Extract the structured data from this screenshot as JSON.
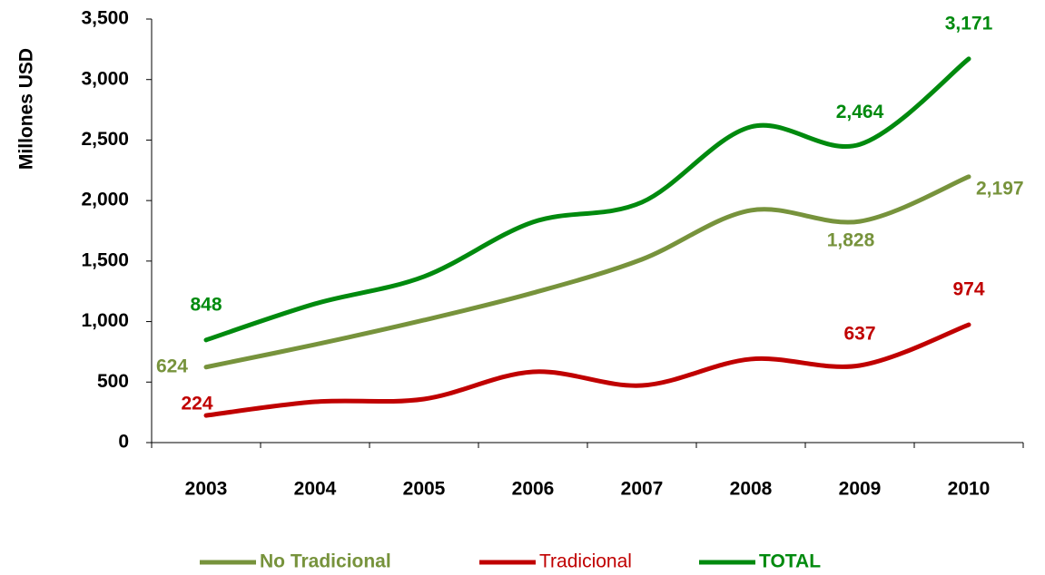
{
  "chart_data": {
    "type": "line",
    "y_label": "Millones USD",
    "categories": [
      "2003",
      "2004",
      "2005",
      "2006",
      "2007",
      "2008",
      "2009",
      "2010"
    ],
    "series": [
      {
        "name": "No Tradicional",
        "color": "#77933c",
        "values": [
          624,
          810,
          1012,
          1237,
          1514,
          1919,
          1828,
          2197
        ],
        "value_labels": [
          "624",
          null,
          null,
          null,
          null,
          null,
          "1,828",
          "2,197"
        ]
      },
      {
        "name": "Tradicional",
        "color": "#c00000",
        "values": [
          224,
          337,
          360,
          585,
          472,
          690,
          637,
          974
        ],
        "value_labels": [
          "224",
          null,
          null,
          null,
          null,
          null,
          "637",
          "974"
        ]
      },
      {
        "name": "TOTAL",
        "color": "#008a0e",
        "values": [
          848,
          1147,
          1372,
          1822,
          1986,
          2609,
          2464,
          3171
        ],
        "value_labels": [
          "848",
          null,
          null,
          null,
          null,
          null,
          "2,464",
          "3,171"
        ]
      }
    ],
    "ylim": [
      0,
      3500
    ],
    "yticks": [
      0,
      500,
      {
        "value": 1000,
        "label": "1,000"
      },
      {
        "value": 1500,
        "label": "1,500"
      },
      {
        "value": 2000,
        "label": "2,000"
      },
      {
        "value": 2500,
        "label": "2,500"
      },
      {
        "value": 3000,
        "label": "3,000"
      },
      {
        "value": 3500,
        "label": "3,500"
      }
    ],
    "grid": false,
    "legend": "bottom",
    "smooth": true
  }
}
